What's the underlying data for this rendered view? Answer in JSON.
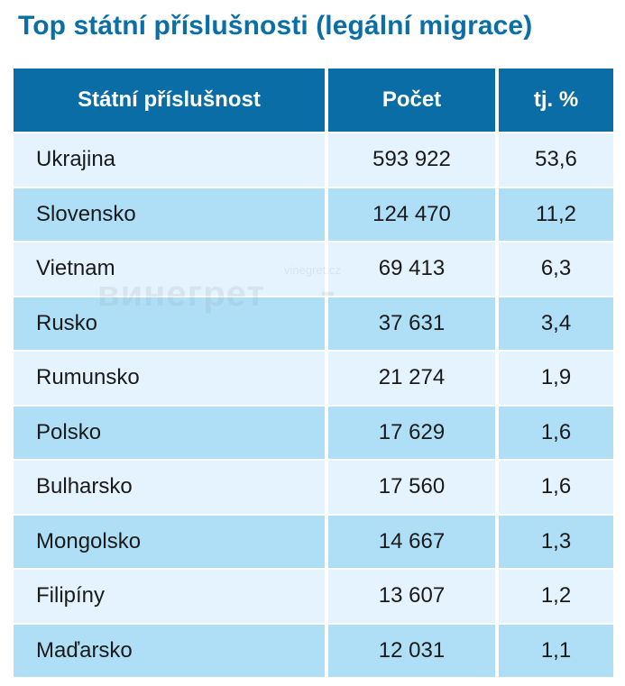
{
  "title": "Top státní příslušnosti (legální migrace)",
  "table": {
    "headers": [
      "Státní příslušnost",
      "Počet",
      "tj. %"
    ],
    "rows": [
      {
        "country": "Ukrajina",
        "count": "593 922",
        "percent": "53,6"
      },
      {
        "country": "Slovensko",
        "count": "124 470",
        "percent": "11,2"
      },
      {
        "country": "Vietnam",
        "count": "69 413",
        "percent": "6,3"
      },
      {
        "country": "Rusko",
        "count": "37 631",
        "percent": "3,4"
      },
      {
        "country": "Rumunsko",
        "count": "21 274",
        "percent": "1,9"
      },
      {
        "country": "Polsko",
        "count": "17 629",
        "percent": "1,6"
      },
      {
        "country": "Bulharsko",
        "count": "17 560",
        "percent": "1,6"
      },
      {
        "country": "Mongolsko",
        "count": "14 667",
        "percent": "1,3"
      },
      {
        "country": "Filipíny",
        "count": "13 607",
        "percent": "1,2"
      },
      {
        "country": "Maďarsko",
        "count": "12 031",
        "percent": "1,1"
      }
    ]
  },
  "watermark": {
    "url": "vinegret.cz",
    "word": "винегрет",
    "dots": "•••"
  },
  "colors": {
    "title": "#0a6fa6",
    "header_bg": "#0b6da5",
    "header_text": "#ffffff",
    "row_light": "#e4f3fd",
    "row_dark": "#aedff7"
  }
}
